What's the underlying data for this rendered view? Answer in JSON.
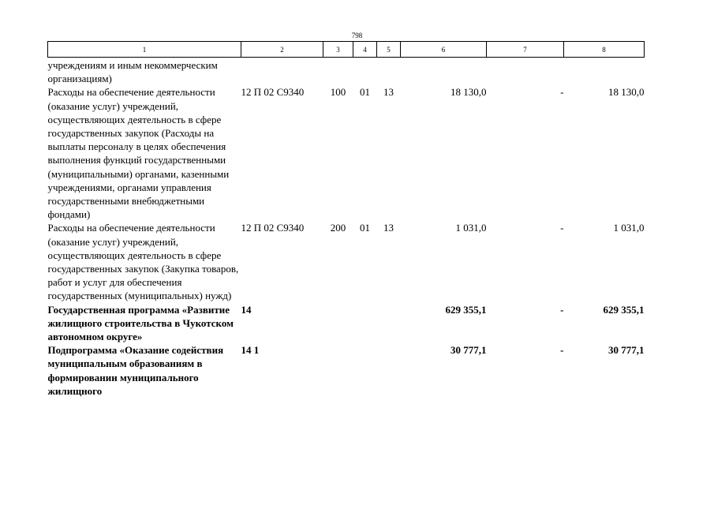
{
  "page_number": "798",
  "columns": [
    "1",
    "2",
    "3",
    "4",
    "5",
    "6",
    "7",
    "8"
  ],
  "rows": [
    {
      "name": "учреждениям и иным некоммерческим организациям)",
      "code": "",
      "c3": "",
      "c4": "",
      "c5": "",
      "c6": "",
      "c7": "",
      "c8": "",
      "bold": false
    },
    {
      "name": "Расходы на обеспечение деятельности (оказание услуг) учреждений, осуществляющих деятельность в сфере государственных закупок (Расходы на выплаты персоналу в целях обеспечения выполнения функций государственными (муниципальными) органами, казенными учреждениями, органами управления государственными внебюджетными фондами)",
      "code": "12 П 02 С9340",
      "c3": "100",
      "c4": "01",
      "c5": "13",
      "c6": "18 130,0",
      "c7": "-",
      "c8": "18 130,0",
      "bold": false
    },
    {
      "name": "Расходы на обеспечение деятельности (оказание услуг) учреждений, осуществляющих деятельность в сфере государственных закупок (Закупка товаров, работ и услуг для обеспечения государственных (муниципальных) нужд)",
      "code": "12 П 02 С9340",
      "c3": "200",
      "c4": "01",
      "c5": "13",
      "c6": "1 031,0",
      "c7": "-",
      "c8": "1 031,0",
      "bold": false
    },
    {
      "name": "Государственная программа «Развитие жилищного строительства в Чукотском автономном округе»",
      "code": "14",
      "c3": "",
      "c4": "",
      "c5": "",
      "c6": "629 355,1",
      "c7": "-",
      "c8": "629 355,1",
      "bold": true
    },
    {
      "name": "Подпрограмма «Оказание содействия муниципальным образованиям в формировании муниципального жилищного",
      "code": "14 1",
      "c3": "",
      "c4": "",
      "c5": "",
      "c6": "30 777,1",
      "c7": "-",
      "c8": "30 777,1",
      "bold": true
    }
  ]
}
